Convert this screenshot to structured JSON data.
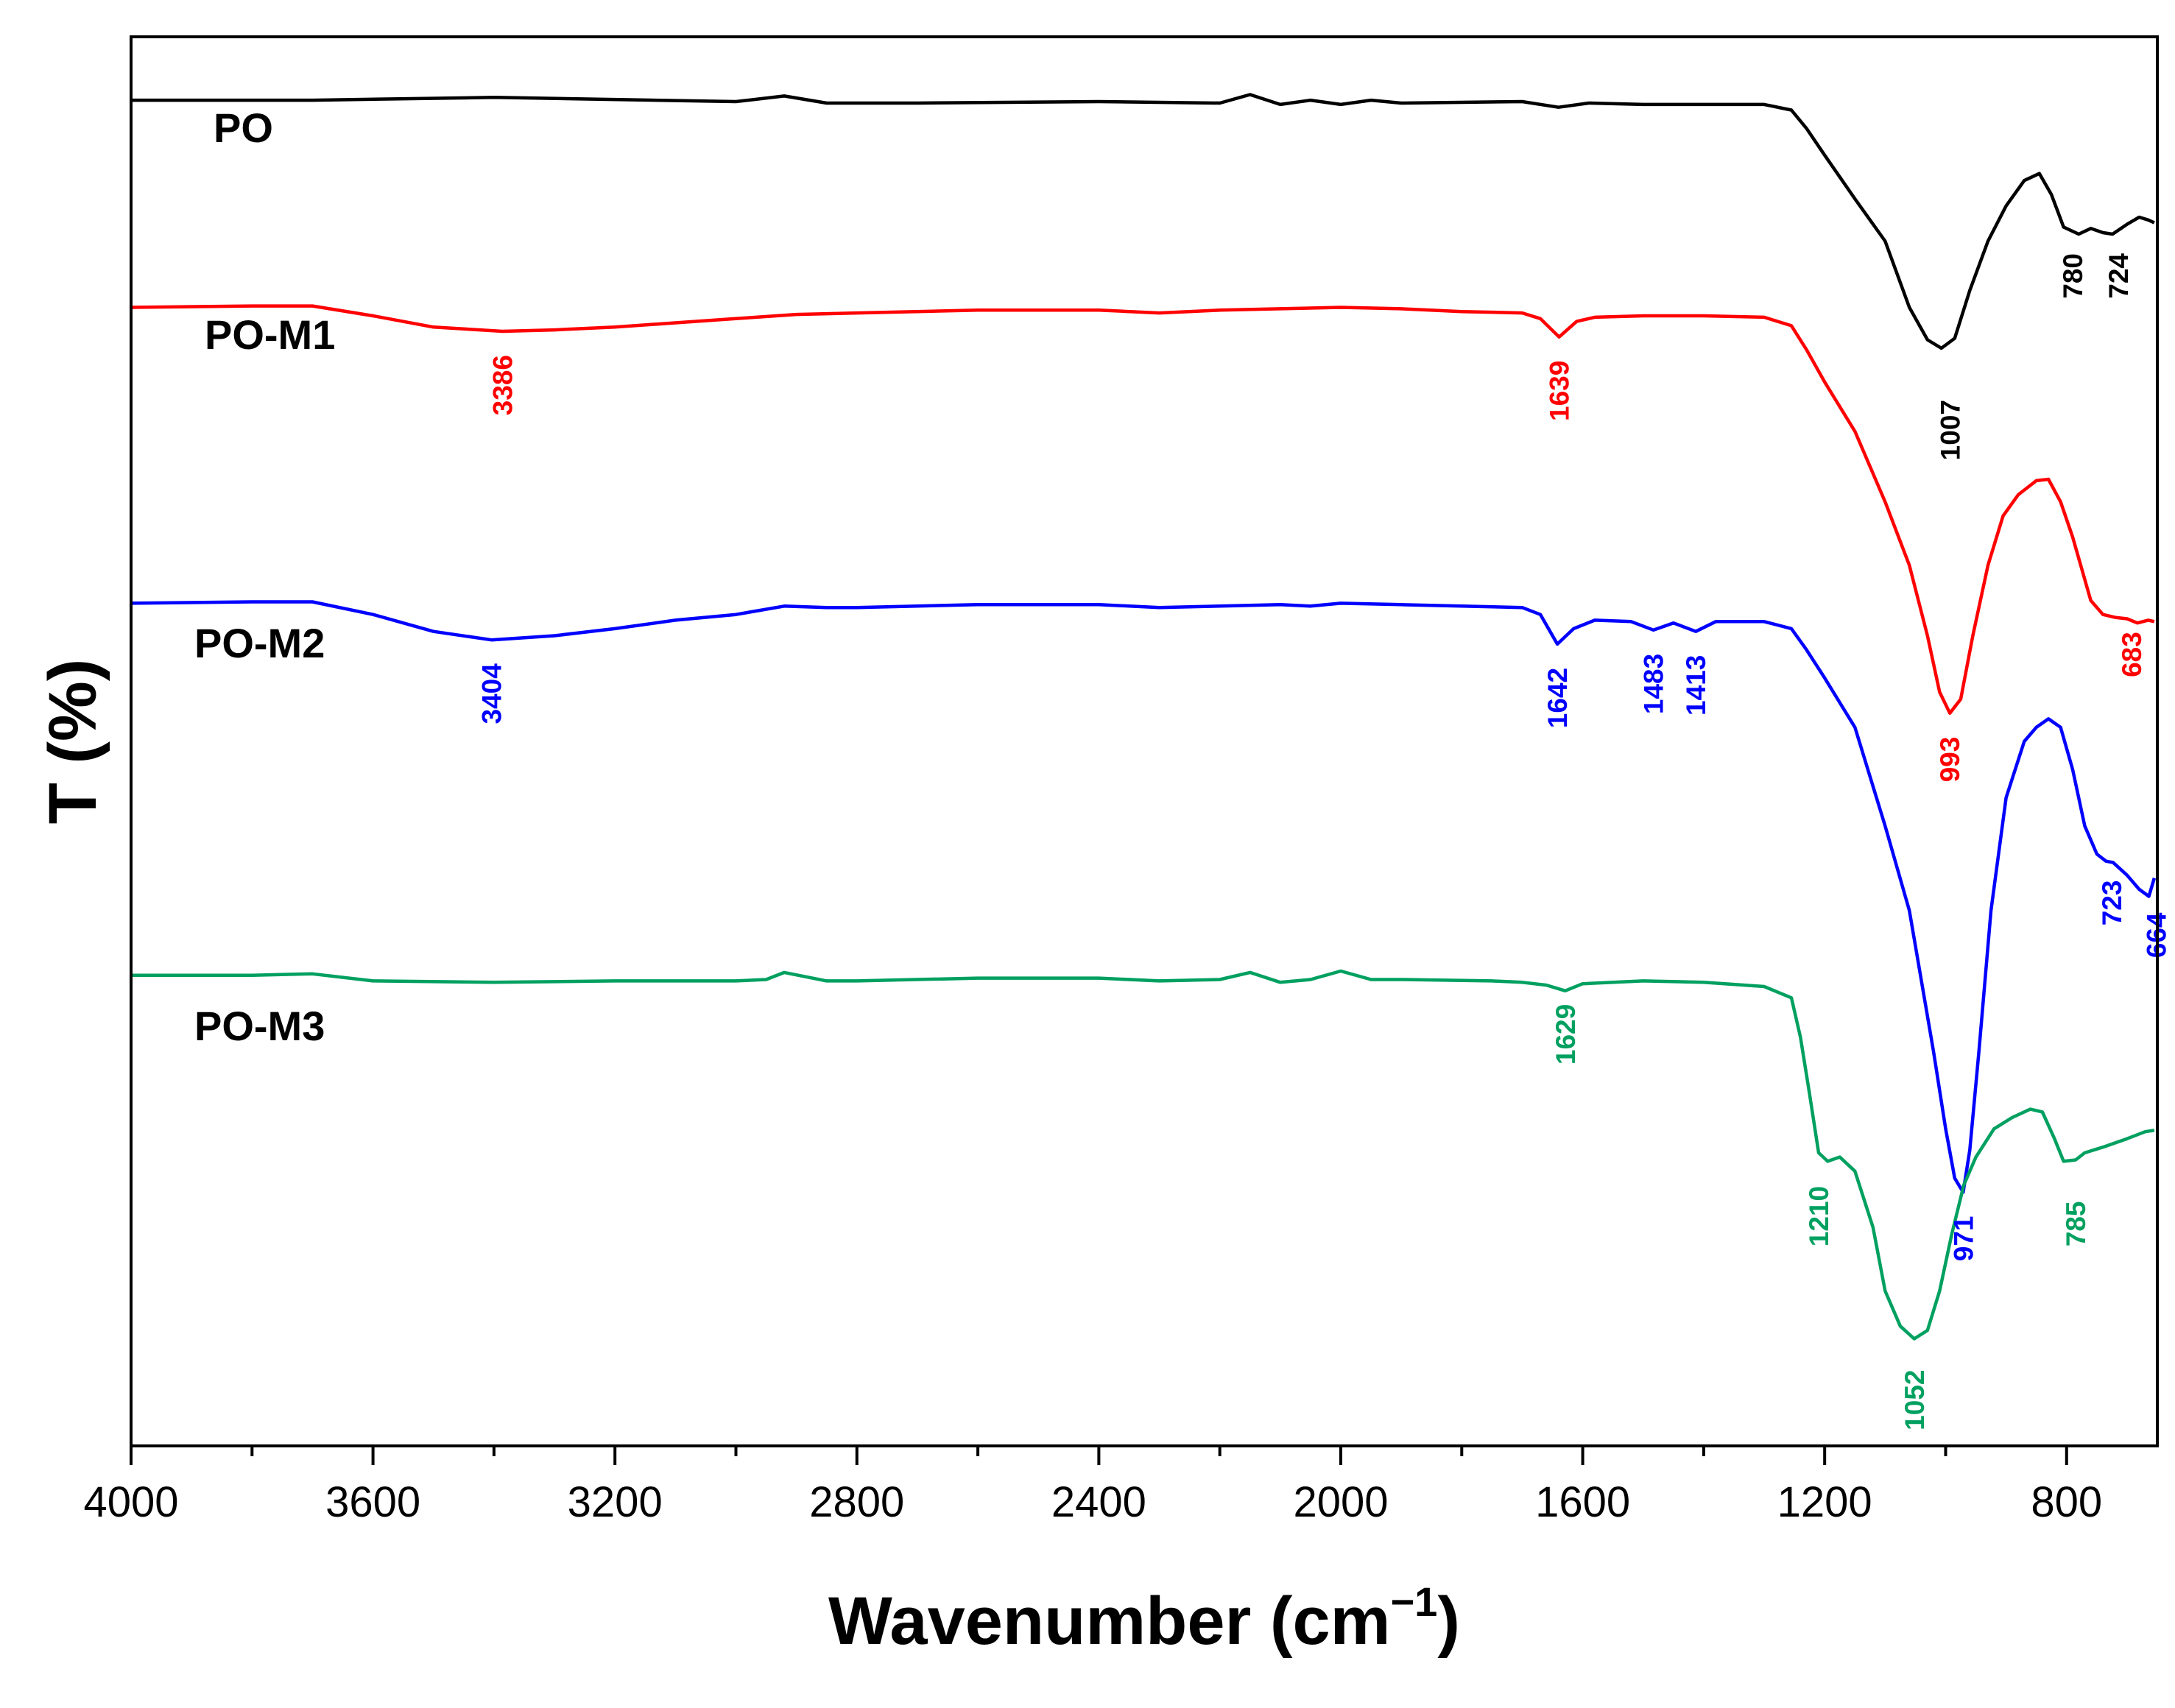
{
  "chart_data": {
    "type": "line",
    "title": "",
    "xlabel": "Wavenumber (cm",
    "xlabel_sup": "−1",
    "xlabel_close": ")",
    "ylabel": "T (%)",
    "xlim": [
      4000,
      650
    ],
    "x_reversed": true,
    "x_ticks": [
      4000,
      3600,
      3200,
      2800,
      2400,
      2000,
      1600,
      1200,
      800
    ],
    "x_tick_labels": [
      "4000",
      "3600",
      "3200",
      "2800",
      "2400",
      "2000",
      "1600",
      "1200",
      "800"
    ],
    "x_minor_ticks": [
      3800,
      3400,
      3000,
      2600,
      2200,
      1800,
      1400,
      1000
    ],
    "y_ticks_shown": false,
    "ylim": [
      0,
      100
    ],
    "series": [
      {
        "name": "PO",
        "color": "#000000",
        "points": [
          [
            4000,
            95.5
          ],
          [
            3700,
            95.5
          ],
          [
            3400,
            95.7
          ],
          [
            3000,
            95.4
          ],
          [
            2920,
            95.8
          ],
          [
            2850,
            95.3
          ],
          [
            2700,
            95.3
          ],
          [
            2400,
            95.4
          ],
          [
            2200,
            95.3
          ],
          [
            2150,
            95.9
          ],
          [
            2100,
            95.2
          ],
          [
            2050,
            95.5
          ],
          [
            2000,
            95.2
          ],
          [
            1950,
            95.5
          ],
          [
            1900,
            95.3
          ],
          [
            1700,
            95.4
          ],
          [
            1640,
            95.0
          ],
          [
            1590,
            95.3
          ],
          [
            1500,
            95.2
          ],
          [
            1400,
            95.2
          ],
          [
            1300,
            95.2
          ],
          [
            1255,
            94.8
          ],
          [
            1230,
            93.5
          ],
          [
            1200,
            91.6
          ],
          [
            1150,
            88.5
          ],
          [
            1100,
            85.5
          ],
          [
            1060,
            80.8
          ],
          [
            1030,
            78.5
          ],
          [
            1007,
            77.9
          ],
          [
            985,
            78.6
          ],
          [
            960,
            82.0
          ],
          [
            930,
            85.5
          ],
          [
            900,
            88.0
          ],
          [
            870,
            89.8
          ],
          [
            845,
            90.3
          ],
          [
            825,
            88.8
          ],
          [
            805,
            86.5
          ],
          [
            780,
            86.0
          ],
          [
            760,
            86.4
          ],
          [
            740,
            86.1
          ],
          [
            724,
            86.0
          ],
          [
            700,
            86.7
          ],
          [
            680,
            87.2
          ],
          [
            665,
            87.0
          ],
          [
            655,
            86.8
          ]
        ]
      },
      {
        "name": "PO-M1",
        "color": "#ff0000",
        "points": [
          [
            4000,
            80.8
          ],
          [
            3800,
            80.9
          ],
          [
            3700,
            80.9
          ],
          [
            3600,
            80.2
          ],
          [
            3500,
            79.4
          ],
          [
            3386,
            79.1
          ],
          [
            3300,
            79.2
          ],
          [
            3200,
            79.4
          ],
          [
            3100,
            79.7
          ],
          [
            3000,
            80.0
          ],
          [
            2900,
            80.3
          ],
          [
            2800,
            80.4
          ],
          [
            2600,
            80.6
          ],
          [
            2400,
            80.6
          ],
          [
            2300,
            80.4
          ],
          [
            2200,
            80.6
          ],
          [
            2100,
            80.7
          ],
          [
            2000,
            80.8
          ],
          [
            1900,
            80.7
          ],
          [
            1800,
            80.5
          ],
          [
            1700,
            80.4
          ],
          [
            1670,
            80.0
          ],
          [
            1639,
            78.7
          ],
          [
            1610,
            79.8
          ],
          [
            1580,
            80.1
          ],
          [
            1500,
            80.2
          ],
          [
            1400,
            80.2
          ],
          [
            1300,
            80.1
          ],
          [
            1255,
            79.5
          ],
          [
            1230,
            77.8
          ],
          [
            1200,
            75.5
          ],
          [
            1150,
            72.0
          ],
          [
            1100,
            67.0
          ],
          [
            1060,
            62.5
          ],
          [
            1030,
            57.5
          ],
          [
            1010,
            53.5
          ],
          [
            993,
            52.0
          ],
          [
            975,
            53.0
          ],
          [
            955,
            57.5
          ],
          [
            930,
            62.5
          ],
          [
            905,
            66.0
          ],
          [
            880,
            67.5
          ],
          [
            850,
            68.5
          ],
          [
            830,
            68.6
          ],
          [
            810,
            67.0
          ],
          [
            790,
            64.5
          ],
          [
            760,
            60.0
          ],
          [
            740,
            59.0
          ],
          [
            720,
            58.8
          ],
          [
            700,
            58.7
          ],
          [
            683,
            58.4
          ],
          [
            665,
            58.6
          ],
          [
            655,
            58.5
          ]
        ]
      },
      {
        "name": "PO-M2",
        "color": "#0000ff",
        "points": [
          [
            4000,
            59.8
          ],
          [
            3800,
            59.9
          ],
          [
            3700,
            59.9
          ],
          [
            3600,
            59.0
          ],
          [
            3500,
            57.8
          ],
          [
            3404,
            57.2
          ],
          [
            3300,
            57.5
          ],
          [
            3200,
            58.0
          ],
          [
            3100,
            58.6
          ],
          [
            3000,
            59.0
          ],
          [
            2920,
            59.6
          ],
          [
            2850,
            59.5
          ],
          [
            2800,
            59.5
          ],
          [
            2600,
            59.7
          ],
          [
            2400,
            59.7
          ],
          [
            2300,
            59.5
          ],
          [
            2200,
            59.6
          ],
          [
            2100,
            59.7
          ],
          [
            2050,
            59.6
          ],
          [
            2000,
            59.8
          ],
          [
            1900,
            59.7
          ],
          [
            1800,
            59.6
          ],
          [
            1700,
            59.5
          ],
          [
            1670,
            59.0
          ],
          [
            1642,
            56.9
          ],
          [
            1615,
            58.0
          ],
          [
            1580,
            58.6
          ],
          [
            1520,
            58.5
          ],
          [
            1483,
            57.9
          ],
          [
            1450,
            58.4
          ],
          [
            1413,
            57.8
          ],
          [
            1380,
            58.5
          ],
          [
            1300,
            58.5
          ],
          [
            1255,
            58.0
          ],
          [
            1230,
            56.5
          ],
          [
            1200,
            54.5
          ],
          [
            1150,
            51.0
          ],
          [
            1100,
            44.0
          ],
          [
            1060,
            38.0
          ],
          [
            1040,
            33.0
          ],
          [
            1020,
            28.0
          ],
          [
            1000,
            22.5
          ],
          [
            985,
            19.0
          ],
          [
            971,
            18.0
          ],
          [
            960,
            21.0
          ],
          [
            945,
            28.0
          ],
          [
            925,
            38.0
          ],
          [
            900,
            46.0
          ],
          [
            870,
            50.0
          ],
          [
            850,
            51.0
          ],
          [
            830,
            51.6
          ],
          [
            810,
            51.0
          ],
          [
            790,
            48.0
          ],
          [
            770,
            44.0
          ],
          [
            750,
            42.0
          ],
          [
            735,
            41.5
          ],
          [
            723,
            41.4
          ],
          [
            700,
            40.5
          ],
          [
            680,
            39.5
          ],
          [
            664,
            39.0
          ],
          [
            655,
            40.3
          ]
        ]
      },
      {
        "name": "PO-M3",
        "color": "#00a060",
        "points": [
          [
            4000,
            33.4
          ],
          [
            3800,
            33.4
          ],
          [
            3700,
            33.5
          ],
          [
            3600,
            33.0
          ],
          [
            3400,
            32.9
          ],
          [
            3200,
            33.0
          ],
          [
            3000,
            33.0
          ],
          [
            2950,
            33.1
          ],
          [
            2920,
            33.6
          ],
          [
            2850,
            33.0
          ],
          [
            2800,
            33.0
          ],
          [
            2600,
            33.2
          ],
          [
            2400,
            33.2
          ],
          [
            2300,
            33.0
          ],
          [
            2200,
            33.1
          ],
          [
            2150,
            33.6
          ],
          [
            2100,
            32.9
          ],
          [
            2050,
            33.1
          ],
          [
            2000,
            33.7
          ],
          [
            1950,
            33.1
          ],
          [
            1900,
            33.1
          ],
          [
            1750,
            33.0
          ],
          [
            1700,
            32.9
          ],
          [
            1660,
            32.7
          ],
          [
            1629,
            32.3
          ],
          [
            1600,
            32.8
          ],
          [
            1500,
            33.0
          ],
          [
            1400,
            32.9
          ],
          [
            1300,
            32.6
          ],
          [
            1255,
            31.8
          ],
          [
            1240,
            29.0
          ],
          [
            1225,
            25.0
          ],
          [
            1210,
            20.8
          ],
          [
            1195,
            20.2
          ],
          [
            1175,
            20.5
          ],
          [
            1150,
            19.5
          ],
          [
            1120,
            15.5
          ],
          [
            1100,
            11.0
          ],
          [
            1075,
            8.5
          ],
          [
            1052,
            7.6
          ],
          [
            1030,
            8.2
          ],
          [
            1010,
            11.0
          ],
          [
            990,
            15.0
          ],
          [
            970,
            18.5
          ],
          [
            950,
            20.5
          ],
          [
            920,
            22.5
          ],
          [
            890,
            23.3
          ],
          [
            860,
            23.9
          ],
          [
            840,
            23.7
          ],
          [
            820,
            21.8
          ],
          [
            805,
            20.2
          ],
          [
            785,
            20.3
          ],
          [
            770,
            20.8
          ],
          [
            740,
            21.2
          ],
          [
            700,
            21.8
          ],
          [
            670,
            22.3
          ],
          [
            655,
            22.4
          ]
        ]
      }
    ],
    "series_labels": [
      {
        "text": "PO",
        "color": "#000000"
      },
      {
        "text": "PO-M1",
        "color": "#000000"
      },
      {
        "text": "PO-M2",
        "color": "#000000"
      },
      {
        "text": "PO-M3",
        "color": "#000000"
      }
    ],
    "peak_annotations": [
      {
        "series": "PO",
        "text": "1007",
        "x": 1007,
        "y": 77.9,
        "color": "#000000"
      },
      {
        "series": "PO",
        "text": "780",
        "x": 780,
        "y": 86.0,
        "color": "#000000"
      },
      {
        "series": "PO",
        "text": "724",
        "x": 724,
        "y": 86.0,
        "color": "#000000"
      },
      {
        "series": "PO-M1",
        "text": "3386",
        "x": 3386,
        "y": 79.1,
        "color": "#ff0000"
      },
      {
        "series": "PO-M1",
        "text": "1639",
        "x": 1639,
        "y": 78.7,
        "color": "#ff0000"
      },
      {
        "series": "PO-M1",
        "text": "993",
        "x": 993,
        "y": 52.0,
        "color": "#ff0000"
      },
      {
        "series": "PO-M1",
        "text": "683",
        "x": 683,
        "y": 58.4,
        "color": "#ff0000"
      },
      {
        "series": "PO-M2",
        "text": "3404",
        "x": 3404,
        "y": 57.2,
        "color": "#0000ff"
      },
      {
        "series": "PO-M2",
        "text": "1642",
        "x": 1642,
        "y": 56.9,
        "color": "#0000ff"
      },
      {
        "series": "PO-M2",
        "text": "1483",
        "x": 1483,
        "y": 57.9,
        "color": "#0000ff"
      },
      {
        "series": "PO-M2",
        "text": "1413",
        "x": 1413,
        "y": 57.8,
        "color": "#0000ff"
      },
      {
        "series": "PO-M2",
        "text": "971",
        "x": 971,
        "y": 18.0,
        "color": "#0000ff"
      },
      {
        "series": "PO-M2",
        "text": "723",
        "x": 723,
        "y": 41.4,
        "color": "#0000ff"
      },
      {
        "series": "PO-M2",
        "text": "664",
        "x": 664,
        "y": 39.0,
        "color": "#0000ff"
      },
      {
        "series": "PO-M3",
        "text": "1629",
        "x": 1629,
        "y": 32.3,
        "color": "#00a060"
      },
      {
        "series": "PO-M3",
        "text": "1210",
        "x": 1210,
        "y": 20.8,
        "color": "#00a060"
      },
      {
        "series": "PO-M3",
        "text": "1052",
        "x": 1052,
        "y": 7.6,
        "color": "#00a060"
      },
      {
        "series": "PO-M3",
        "text": "785",
        "x": 785,
        "y": 20.3,
        "color": "#00a060"
      }
    ]
  }
}
